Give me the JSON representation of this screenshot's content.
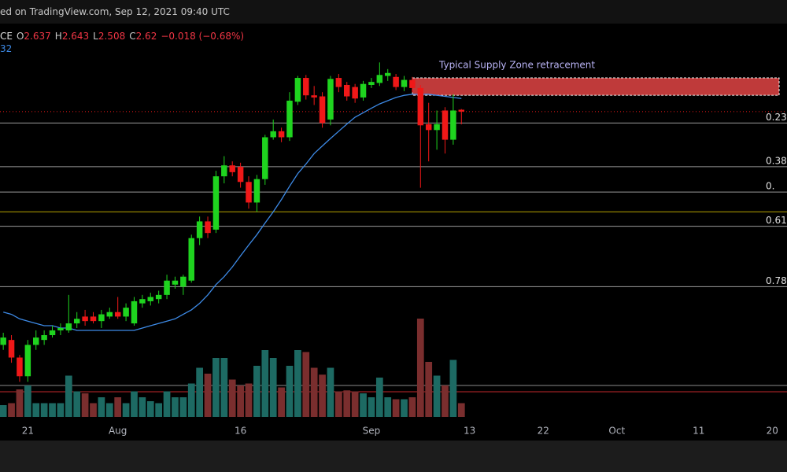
{
  "chart_data": {
    "type": "candlestick",
    "source_note": "ed on TradingView.com, Sep 12, 2021 09:40 UTC",
    "symbol": "CE",
    "ohlc_labels": [
      "O",
      "H",
      "L",
      "C"
    ],
    "change_label": "−0.018 (−0.68%)",
    "ma_label": "32",
    "open": [
      1.18,
      1.2,
      1.13,
      1.06,
      1.18,
      1.2,
      1.22,
      1.24,
      1.24,
      1.27,
      1.3,
      1.3,
      1.28,
      1.3,
      1.32,
      1.3,
      1.27,
      1.36,
      1.37,
      1.38,
      1.4,
      1.45,
      1.44,
      1.47,
      1.7,
      1.8,
      1.75,
      2.1,
      2.18,
      2.17,
      2.06,
      1.92,
      2.08,
      2.4,
      2.45,
      2.4,
      2.71,
      2.94,
      2.77,
      2.76,
      2.55,
      2.94,
      2.87,
      2.85,
      2.75,
      2.87,
      2.89,
      2.96,
      2.95,
      2.85,
      2.92,
      2.84,
      2.51,
      2.46,
      2.63,
      2.38,
      2.637
    ],
    "high": [
      1.23,
      1.22,
      1.14,
      1.2,
      1.24,
      1.24,
      1.26,
      1.27,
      1.4,
      1.32,
      1.33,
      1.32,
      1.33,
      1.34,
      1.39,
      1.36,
      1.39,
      1.4,
      1.41,
      1.42,
      1.5,
      1.49,
      1.5,
      1.72,
      1.83,
      1.83,
      2.14,
      2.25,
      2.21,
      2.2,
      2.1,
      2.11,
      2.42,
      2.55,
      2.48,
      2.8,
      2.96,
      2.97,
      2.86,
      2.8,
      2.96,
      2.98,
      2.9,
      2.88,
      2.91,
      2.94,
      3.1,
      3.03,
      2.98,
      2.96,
      2.95,
      2.87,
      2.7,
      2.63,
      2.66,
      2.78,
      2.643
    ],
    "low": [
      1.16,
      1.11,
      1.04,
      1.04,
      1.16,
      1.18,
      1.21,
      1.22,
      1.23,
      1.25,
      1.26,
      1.27,
      1.25,
      1.29,
      1.29,
      1.28,
      1.26,
      1.34,
      1.35,
      1.36,
      1.38,
      1.43,
      1.4,
      1.46,
      1.66,
      1.7,
      1.73,
      2.05,
      2.1,
      2.02,
      1.88,
      1.86,
      2.04,
      2.38,
      2.36,
      2.37,
      2.68,
      2.73,
      2.68,
      2.48,
      2.5,
      2.8,
      2.72,
      2.7,
      2.72,
      2.84,
      2.86,
      2.91,
      2.82,
      2.81,
      2.8,
      2.02,
      2.21,
      2.3,
      2.27,
      2.34,
      2.508
    ],
    "close": [
      1.21,
      1.13,
      1.06,
      1.18,
      1.21,
      1.22,
      1.24,
      1.25,
      1.27,
      1.29,
      1.28,
      1.28,
      1.31,
      1.32,
      1.3,
      1.34,
      1.37,
      1.38,
      1.39,
      1.4,
      1.47,
      1.47,
      1.49,
      1.7,
      1.8,
      1.73,
      2.1,
      2.18,
      2.13,
      2.06,
      1.92,
      2.08,
      2.4,
      2.45,
      2.4,
      2.72,
      2.94,
      2.77,
      2.75,
      2.52,
      2.93,
      2.85,
      2.76,
      2.74,
      2.88,
      2.9,
      2.97,
      2.99,
      2.85,
      2.92,
      2.84,
      2.5,
      2.46,
      2.51,
      2.38,
      2.63,
      2.62
    ],
    "volume": [
      12,
      14,
      28,
      32,
      14,
      14,
      14,
      14,
      42,
      26,
      24,
      14,
      20,
      14,
      20,
      14,
      26,
      20,
      16,
      14,
      26,
      20,
      20,
      34,
      50,
      44,
      60,
      60,
      38,
      32,
      34,
      52,
      68,
      60,
      30,
      52,
      68,
      66,
      50,
      43,
      50,
      26,
      27,
      26,
      24,
      20,
      40,
      20,
      18,
      18,
      20,
      100,
      56,
      42,
      32,
      58,
      14
    ],
    "vlim": [
      0,
      100
    ],
    "up_color": "#1fd41f",
    "down_color": "#f01818",
    "up_volume_color": "#1d6a63",
    "down_volume_color": "#7a2e2e",
    "ma": {
      "color": "#3d8ae6",
      "values": [
        1.32,
        1.31,
        1.29,
        1.28,
        1.27,
        1.26,
        1.26,
        1.25,
        1.25,
        1.24,
        1.24,
        1.24,
        1.24,
        1.24,
        1.24,
        1.24,
        1.24,
        1.25,
        1.26,
        1.27,
        1.28,
        1.29,
        1.31,
        1.33,
        1.36,
        1.4,
        1.45,
        1.49,
        1.54,
        1.6,
        1.66,
        1.72,
        1.79,
        1.86,
        1.94,
        2.03,
        2.12,
        2.19,
        2.27,
        2.33,
        2.39,
        2.45,
        2.51,
        2.57,
        2.61,
        2.65,
        2.69,
        2.72,
        2.75,
        2.77,
        2.78,
        2.78,
        2.78,
        2.77,
        2.76,
        2.75,
        2.74
      ]
    },
    "ylim": [
      0.91,
      3.54
    ],
    "log_scale": true,
    "xlim": [
      -0.4,
      95.8
    ],
    "xticks": [
      {
        "value": 3,
        "label": "21"
      },
      {
        "value": 14,
        "label": "Aug"
      },
      {
        "value": 29,
        "label": "16"
      },
      {
        "value": 45,
        "label": "Sep"
      },
      {
        "value": 57,
        "label": "13"
      },
      {
        "value": 66,
        "label": "22"
      },
      {
        "value": 75,
        "label": "Oct"
      },
      {
        "value": 85,
        "label": "11"
      },
      {
        "value": 94,
        "label": "20"
      }
    ],
    "levels": [
      {
        "label": "0.23",
        "price": 2.52,
        "color": "#9a9a9a"
      },
      {
        "label": "0.38",
        "price": 2.17,
        "color": "#9a9a9a"
      },
      {
        "label": "0.",
        "price": 1.99,
        "color": "#9a9a9a"
      },
      {
        "price": 1.86,
        "color": "#b5a300"
      },
      {
        "label": "0.61",
        "price": 1.77,
        "color": "#9a9a9a"
      },
      {
        "label": "0.78",
        "price": 1.44,
        "color": "#9a9a9a"
      }
    ],
    "zone": {
      "label": "Typical Supply Zone retracement",
      "top": 2.94,
      "bottom": 2.77,
      "color": "#ff4d4d"
    },
    "annotation_color": "#b9b3f5"
  }
}
